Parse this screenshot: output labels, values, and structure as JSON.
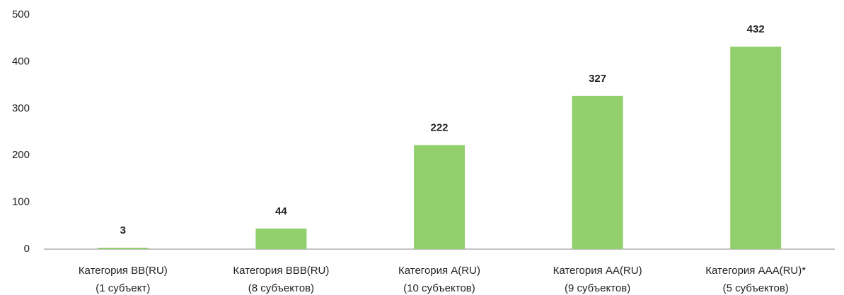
{
  "chart_data": {
    "type": "bar",
    "categories": [
      [
        "Категория BB(RU)",
        "(1 субъект)"
      ],
      [
        "Категория BBB(RU)",
        "(8 субъектов)"
      ],
      [
        "Категория A(RU)",
        "(10 субъектов)"
      ],
      [
        "Категория AA(RU)",
        "(9 субъектов)"
      ],
      [
        "Категория AAA(RU)*",
        "(5 субъектов)"
      ]
    ],
    "values": [
      3,
      44,
      222,
      327,
      432
    ],
    "color": "#92d06d",
    "ylim": [
      0,
      500
    ],
    "yticks": [
      0,
      100,
      200,
      300,
      400,
      500
    ],
    "grid": false
  }
}
